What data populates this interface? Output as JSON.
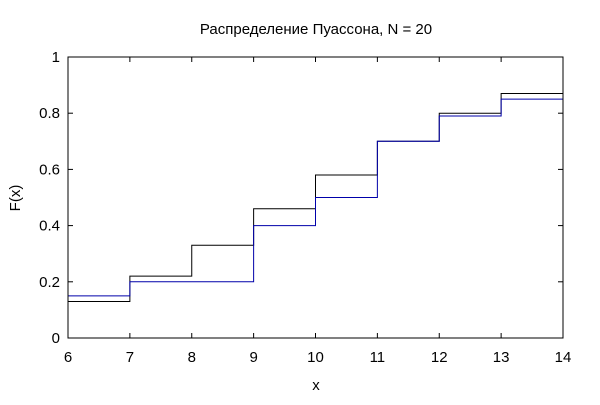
{
  "chart_data": {
    "type": "line",
    "title": "Распределение Пуассона, N = 20",
    "xlabel": "x",
    "ylabel": "F(x)",
    "xlim": [
      6,
      14
    ],
    "ylim": [
      0,
      1
    ],
    "x_ticks": [
      "6",
      "7",
      "8",
      "9",
      "10",
      "11",
      "12",
      "13",
      "14"
    ],
    "y_ticks": [
      "0",
      "0.2",
      "0.4",
      "0.6",
      "0.8",
      "1"
    ],
    "x_tick_values": [
      6,
      7,
      8,
      9,
      10,
      11,
      12,
      13,
      14
    ],
    "y_tick_values": [
      0,
      0.2,
      0.4,
      0.6,
      0.8,
      1
    ],
    "grid": false,
    "legend": "none",
    "step": true,
    "series": [
      {
        "color": "#000000",
        "x": [
          6,
          7,
          8,
          9,
          10,
          11,
          12,
          13,
          14
        ],
        "values": [
          0.13,
          0.22,
          0.33,
          0.46,
          0.58,
          0.7,
          0.8,
          0.87,
          0.87
        ]
      },
      {
        "color": "#0000aa",
        "x": [
          6,
          7,
          8,
          9,
          10,
          11,
          12,
          13,
          14
        ],
        "values": [
          0.15,
          0.2,
          0.2,
          0.4,
          0.5,
          0.7,
          0.79,
          0.85,
          0.85
        ]
      }
    ]
  }
}
